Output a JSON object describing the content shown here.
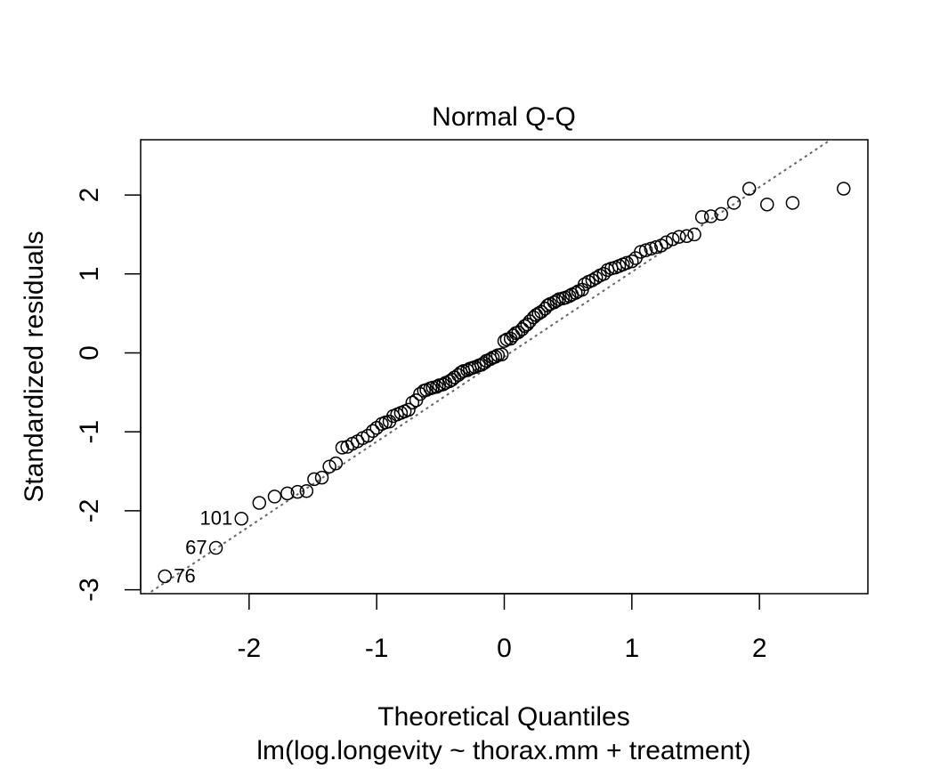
{
  "chart_data": {
    "type": "scatter",
    "title": "Normal Q-Q",
    "xlabel": "Theoretical Quantiles",
    "ylabel": "Standardized residuals",
    "subtitle": "lm(log.longevity ~ thorax.mm + treatment)",
    "xlim": [
      -2.85,
      2.85
    ],
    "ylim": [
      -3.05,
      2.7
    ],
    "xticks": [
      "-2",
      "-1",
      "0",
      "1",
      "2"
    ],
    "yticks": [
      "-3",
      "-2",
      "-1",
      "0",
      "1",
      "2"
    ],
    "reference_line": {
      "style": "dotted",
      "color": "#666666",
      "slope": 1.075,
      "intercept": -0.05
    },
    "point_labels": [
      {
        "text": "101",
        "x": -2.06,
        "y": -2.1,
        "side": "left"
      },
      {
        "text": "67",
        "x": -2.26,
        "y": -2.47,
        "side": "left"
      },
      {
        "text": "76",
        "x": -2.66,
        "y": -2.83,
        "side": "right"
      }
    ],
    "series": [
      {
        "x": [
          -2.66,
          -2.26,
          -2.06,
          -1.92,
          -1.8,
          -1.7,
          -1.62,
          -1.55,
          -1.49,
          -1.43,
          -1.37,
          -1.32,
          -1.27,
          -1.23,
          -1.19,
          -1.15,
          -1.11,
          -1.07,
          -1.03,
          -1.0,
          -0.96,
          -0.93,
          -0.9,
          -0.87,
          -0.84,
          -0.81,
          -0.78,
          -0.75,
          -0.72,
          -0.69,
          -0.66,
          -0.63,
          -0.61,
          -0.58,
          -0.56,
          -0.53,
          -0.51,
          -0.48,
          -0.46,
          -0.43,
          -0.41,
          -0.39,
          -0.36,
          -0.34,
          -0.32,
          -0.29,
          -0.27,
          -0.25,
          -0.23,
          -0.2,
          -0.18,
          -0.16,
          -0.14,
          -0.11,
          -0.09,
          -0.07,
          -0.05,
          -0.02,
          0.0,
          0.02,
          0.05,
          0.07,
          0.09,
          0.11,
          0.14,
          0.16,
          0.18,
          0.2,
          0.23,
          0.25,
          0.27,
          0.29,
          0.32,
          0.34,
          0.36,
          0.39,
          0.41,
          0.43,
          0.46,
          0.48,
          0.51,
          0.53,
          0.56,
          0.58,
          0.61,
          0.63,
          0.66,
          0.69,
          0.72,
          0.75,
          0.78,
          0.81,
          0.84,
          0.87,
          0.9,
          0.93,
          0.96,
          1.0,
          1.03,
          1.07,
          1.11,
          1.15,
          1.19,
          1.23,
          1.27,
          1.32,
          1.37,
          1.43,
          1.49,
          1.55,
          1.62,
          1.7,
          1.8,
          1.92,
          2.06,
          2.26,
          2.66
        ],
        "y": [
          -2.83,
          -2.47,
          -2.1,
          -1.9,
          -1.82,
          -1.78,
          -1.76,
          -1.75,
          -1.6,
          -1.58,
          -1.44,
          -1.4,
          -1.2,
          -1.19,
          -1.15,
          -1.12,
          -1.08,
          -1.05,
          -0.99,
          -0.95,
          -0.9,
          -0.88,
          -0.87,
          -0.8,
          -0.78,
          -0.76,
          -0.74,
          -0.72,
          -0.63,
          -0.6,
          -0.52,
          -0.48,
          -0.47,
          -0.45,
          -0.44,
          -0.43,
          -0.41,
          -0.4,
          -0.38,
          -0.36,
          -0.34,
          -0.31,
          -0.28,
          -0.25,
          -0.23,
          -0.22,
          -0.2,
          -0.19,
          -0.18,
          -0.16,
          -0.15,
          -0.13,
          -0.1,
          -0.08,
          -0.06,
          -0.05,
          -0.03,
          -0.02,
          0.15,
          0.17,
          0.18,
          0.22,
          0.25,
          0.26,
          0.3,
          0.34,
          0.36,
          0.4,
          0.45,
          0.48,
          0.5,
          0.52,
          0.56,
          0.6,
          0.62,
          0.64,
          0.66,
          0.68,
          0.69,
          0.7,
          0.72,
          0.74,
          0.76,
          0.78,
          0.8,
          0.87,
          0.9,
          0.92,
          0.95,
          0.98,
          1.0,
          1.05,
          1.07,
          1.08,
          1.1,
          1.12,
          1.14,
          1.16,
          1.2,
          1.28,
          1.3,
          1.32,
          1.34,
          1.36,
          1.4,
          1.44,
          1.47,
          1.48,
          1.5,
          1.72,
          1.73,
          1.76,
          1.9,
          2.08,
          1.88,
          1.9,
          2.08
        ]
      }
    ]
  }
}
